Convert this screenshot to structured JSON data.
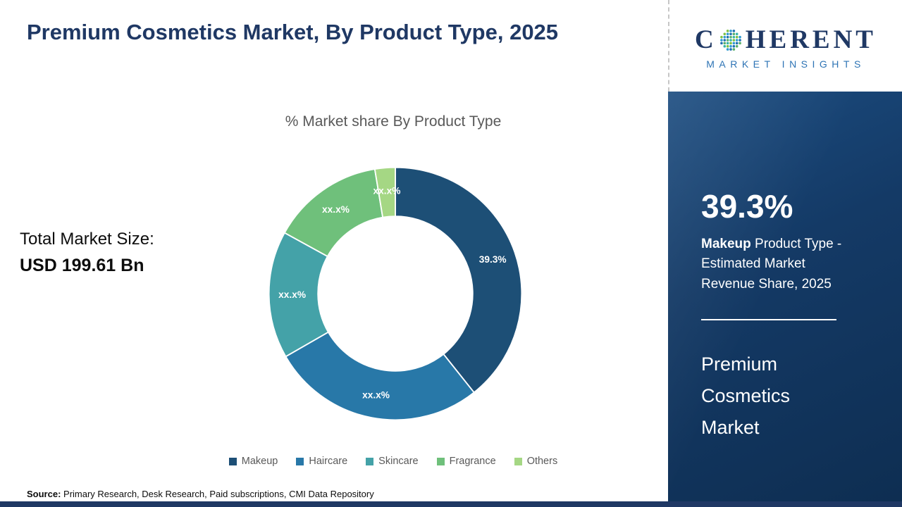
{
  "header": {
    "title": "Premium Cosmetics Market, By Product Type, 2025"
  },
  "left_panel": {
    "total_label": "Total Market Size:",
    "total_value": "USD 199.61 Bn"
  },
  "chart_data": {
    "type": "donut",
    "title": "% Market share By Product Type",
    "categories": [
      "Makeup",
      "Haircare",
      "Skincare",
      "Fragrance",
      "Others"
    ],
    "values": [
      39.3,
      27.4,
      16.3,
      14.4,
      2.6
    ],
    "display_labels": [
      "39.3%",
      "xx.x%",
      "xx.x%",
      "xx.x%",
      "xx.x%"
    ],
    "colors": [
      "#1d4f76",
      "#2878a8",
      "#44a2a8",
      "#6fc07b",
      "#a5d784"
    ],
    "legend_position": "bottom",
    "start_angle_deg": 0,
    "direction": "clockwise"
  },
  "source": {
    "label": "Source:",
    "text": " Primary Research, Desk Research, Paid subscriptions, CMI Data Repository"
  },
  "sidebar": {
    "logo": {
      "first_letter": "C",
      "rest": "HERENT",
      "subtitle": "MARKET INSIGHTS"
    },
    "stat": {
      "value": "39.3%",
      "bold": "Makeup",
      "rest": " Product Type - Estimated Market Revenue Share, 2025"
    },
    "market_lines": [
      "Premium",
      "Cosmetics",
      "Market"
    ]
  }
}
